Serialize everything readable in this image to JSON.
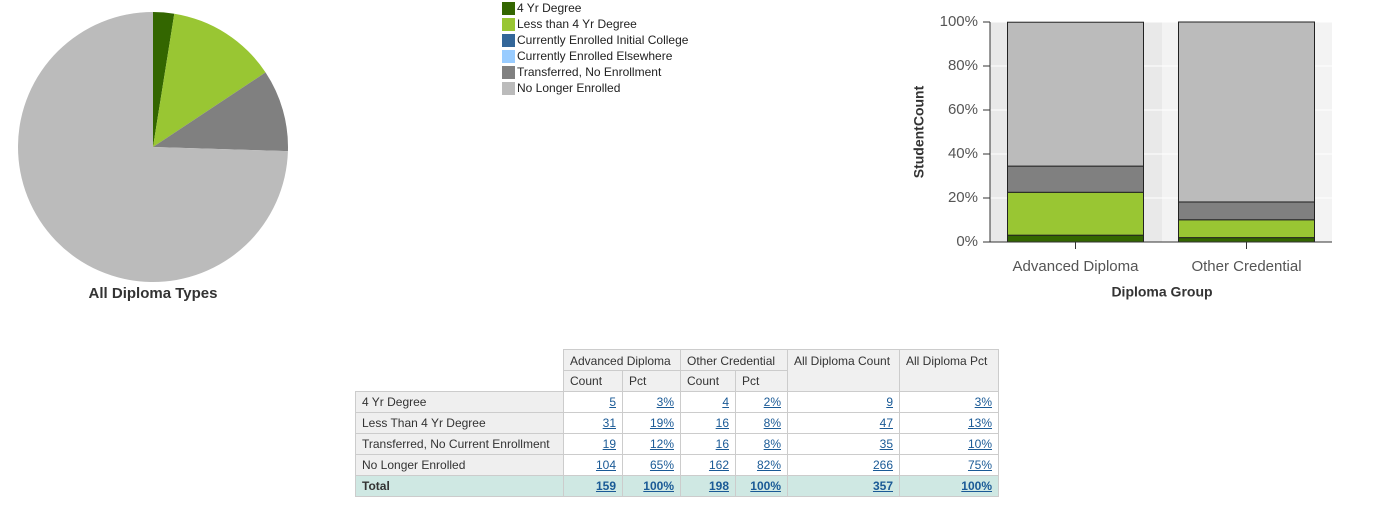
{
  "chart_data": [
    {
      "type": "pie",
      "title": "All Diploma Types",
      "values": [
        9,
        47,
        0,
        0,
        35,
        266
      ],
      "colors": [
        "#336600",
        "#99c633",
        "#336699",
        "#99ccff",
        "#808080",
        "#bbbbbb"
      ]
    },
    {
      "type": "stacked_bar",
      "ylabel": "StudentCount",
      "xlabel": "Diploma Group",
      "categories": [
        "Advanced Diploma",
        "Other Credential"
      ],
      "series": [
        {
          "name": "4 Yr Degree",
          "color": "#336600",
          "values": [
            3.1,
            2.0
          ]
        },
        {
          "name": "Less than 4 Yr Degree",
          "color": "#99c633",
          "values": [
            19.5,
            8.1
          ]
        },
        {
          "name": "Currently Enrolled Initial College",
          "color": "#336699",
          "values": [
            0,
            0
          ]
        },
        {
          "name": "Currently Enrolled Elsewhere",
          "color": "#99ccff",
          "values": [
            0,
            0
          ]
        },
        {
          "name": "Transferred, No Enrollment",
          "color": "#808080",
          "values": [
            11.9,
            8.1
          ]
        },
        {
          "name": "No Longer Enrolled",
          "color": "#bbbbbb",
          "values": [
            65.4,
            81.8
          ]
        }
      ],
      "ylim": [
        0,
        100
      ],
      "yticks": [
        {
          "value": 0,
          "label": "0%"
        },
        {
          "value": 20,
          "label": "20%"
        },
        {
          "value": 40,
          "label": "40%"
        },
        {
          "value": 60,
          "label": "60%"
        },
        {
          "value": 80,
          "label": "80%"
        },
        {
          "value": 100,
          "label": "100%"
        }
      ]
    }
  ],
  "table": {
    "groups": [
      "Advanced Diploma",
      "Other Credential",
      "All Diploma Count",
      "All Diploma Pct"
    ],
    "subheaders": [
      "Count",
      "Pct",
      "Count",
      "Pct"
    ],
    "rows": [
      [
        "4 Yr Degree",
        "5",
        "3%",
        "4",
        "2%",
        "9",
        "3%"
      ],
      [
        "Less Than 4 Yr Degree",
        "31",
        "19%",
        "16",
        "8%",
        "47",
        "13%"
      ],
      [
        "Transferred, No Current Enrollment",
        "19",
        "12%",
        "16",
        "8%",
        "35",
        "10%"
      ],
      [
        "No Longer Enrolled",
        "104",
        "65%",
        "162",
        "82%",
        "266",
        "75%"
      ],
      [
        "Total",
        "159",
        "100%",
        "198",
        "100%",
        "357",
        "100%"
      ]
    ]
  }
}
